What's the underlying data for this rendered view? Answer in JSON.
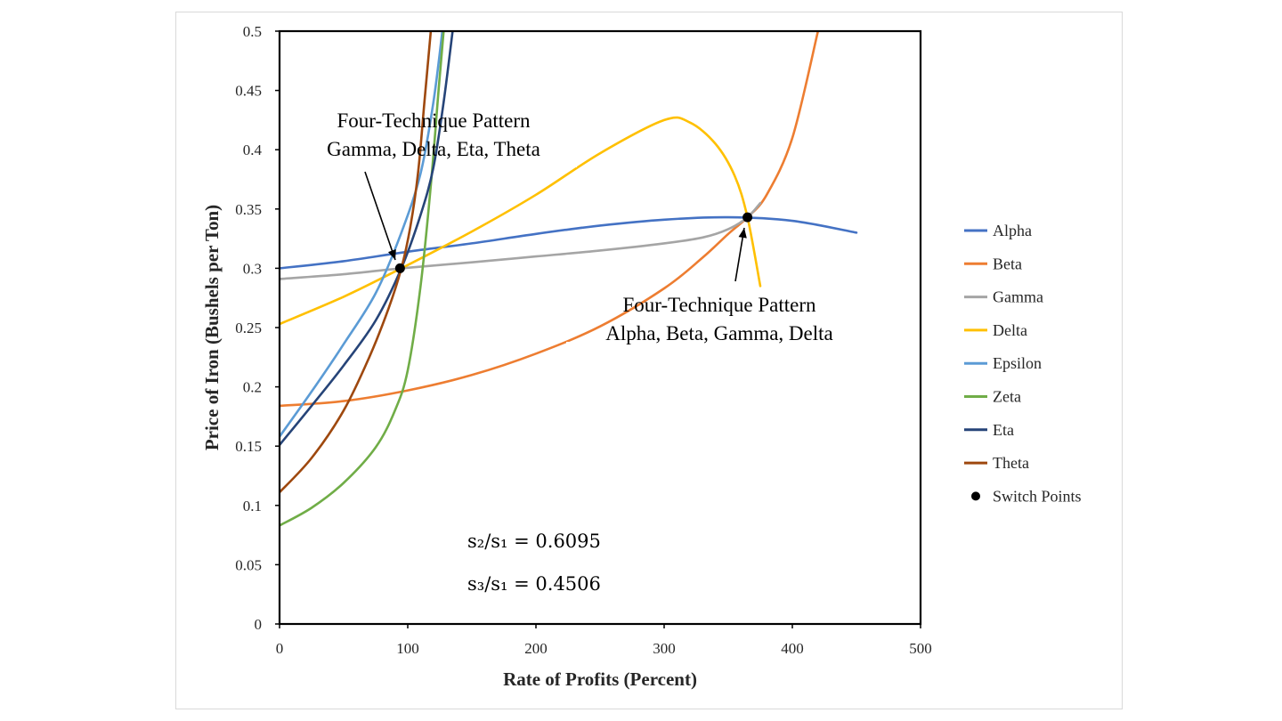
{
  "chart_data": {
    "type": "line",
    "xlabel": "Rate of Profits (Percent)",
    "ylabel": "Price of Iron (Bushels per Ton)",
    "xlim": [
      0,
      500
    ],
    "ylim": [
      0,
      0.5
    ],
    "x_ticks": [
      "0",
      "100",
      "200",
      "300",
      "400",
      "500"
    ],
    "y_ticks": [
      "0",
      "0.05",
      "0.1",
      "0.15",
      "0.2",
      "0.25",
      "0.3",
      "0.35",
      "0.4",
      "0.45",
      "0.5"
    ],
    "series": [
      {
        "name": "Alpha",
        "color": "#4472c4",
        "x": [
          0,
          50,
          100,
          150,
          200,
          250,
          300,
          350,
          400,
          450
        ],
        "y": [
          0.3,
          0.306,
          0.314,
          0.321,
          0.329,
          0.336,
          0.341,
          0.343,
          0.34,
          0.33
        ]
      },
      {
        "name": "Beta",
        "color": "#ed7d31",
        "x": [
          0,
          50,
          100,
          150,
          200,
          250,
          300,
          330,
          350,
          365,
          380,
          400,
          420
        ],
        "y": [
          0.184,
          0.188,
          0.197,
          0.21,
          0.228,
          0.251,
          0.283,
          0.309,
          0.329,
          0.343,
          0.362,
          0.41,
          0.5
        ]
      },
      {
        "name": "Gamma",
        "color": "#a5a5a5",
        "x": [
          0,
          50,
          95,
          150,
          200,
          250,
          300,
          330,
          350,
          365,
          375
        ],
        "y": [
          0.291,
          0.295,
          0.3,
          0.305,
          0.31,
          0.315,
          0.321,
          0.326,
          0.333,
          0.343,
          0.355
        ]
      },
      {
        "name": "Delta",
        "color": "#ffc000",
        "x": [
          0,
          50,
          95,
          150,
          200,
          250,
          300,
          320,
          340,
          355,
          365,
          375
        ],
        "y": [
          0.253,
          0.276,
          0.3,
          0.331,
          0.362,
          0.397,
          0.425,
          0.423,
          0.405,
          0.378,
          0.343,
          0.285
        ]
      },
      {
        "name": "Epsilon",
        "color": "#5b9bd5",
        "x": [
          0,
          25,
          50,
          75,
          95,
          110,
          120,
          127
        ],
        "y": [
          0.158,
          0.196,
          0.236,
          0.279,
          0.33,
          0.38,
          0.44,
          0.5
        ]
      },
      {
        "name": "Zeta",
        "color": "#70ad47",
        "x": [
          0,
          25,
          50,
          75,
          90,
          100,
          110,
          118,
          124,
          128
        ],
        "y": [
          0.083,
          0.098,
          0.119,
          0.149,
          0.18,
          0.214,
          0.285,
          0.37,
          0.45,
          0.5
        ]
      },
      {
        "name": "Eta",
        "color": "#264478",
        "x": [
          0,
          25,
          50,
          75,
          95,
          110,
          120,
          128,
          135
        ],
        "y": [
          0.151,
          0.184,
          0.218,
          0.256,
          0.3,
          0.345,
          0.385,
          0.44,
          0.5
        ]
      },
      {
        "name": "Theta",
        "color": "#9e480e",
        "x": [
          0,
          25,
          50,
          70,
          85,
          95,
          102,
          108,
          113,
          118
        ],
        "y": [
          0.111,
          0.14,
          0.18,
          0.225,
          0.266,
          0.3,
          0.335,
          0.38,
          0.44,
          0.5
        ]
      }
    ],
    "switch_points": {
      "name": "Switch Points",
      "color": "#000000",
      "points": [
        {
          "x": 94,
          "y": 0.3
        },
        {
          "x": 365,
          "y": 0.343
        }
      ]
    },
    "annotations": [
      {
        "lines": [
          "Four-Technique Pattern",
          "Gamma, Delta, Eta, Theta"
        ]
      },
      {
        "lines": [
          "Four-Technique Pattern",
          "Alpha, Beta, Gamma, Delta"
        ]
      }
    ],
    "formulas": [
      "s₂/s₁ = 0.6095",
      "s₃/s₁ = 0.4506"
    ],
    "legend_position": "right"
  }
}
